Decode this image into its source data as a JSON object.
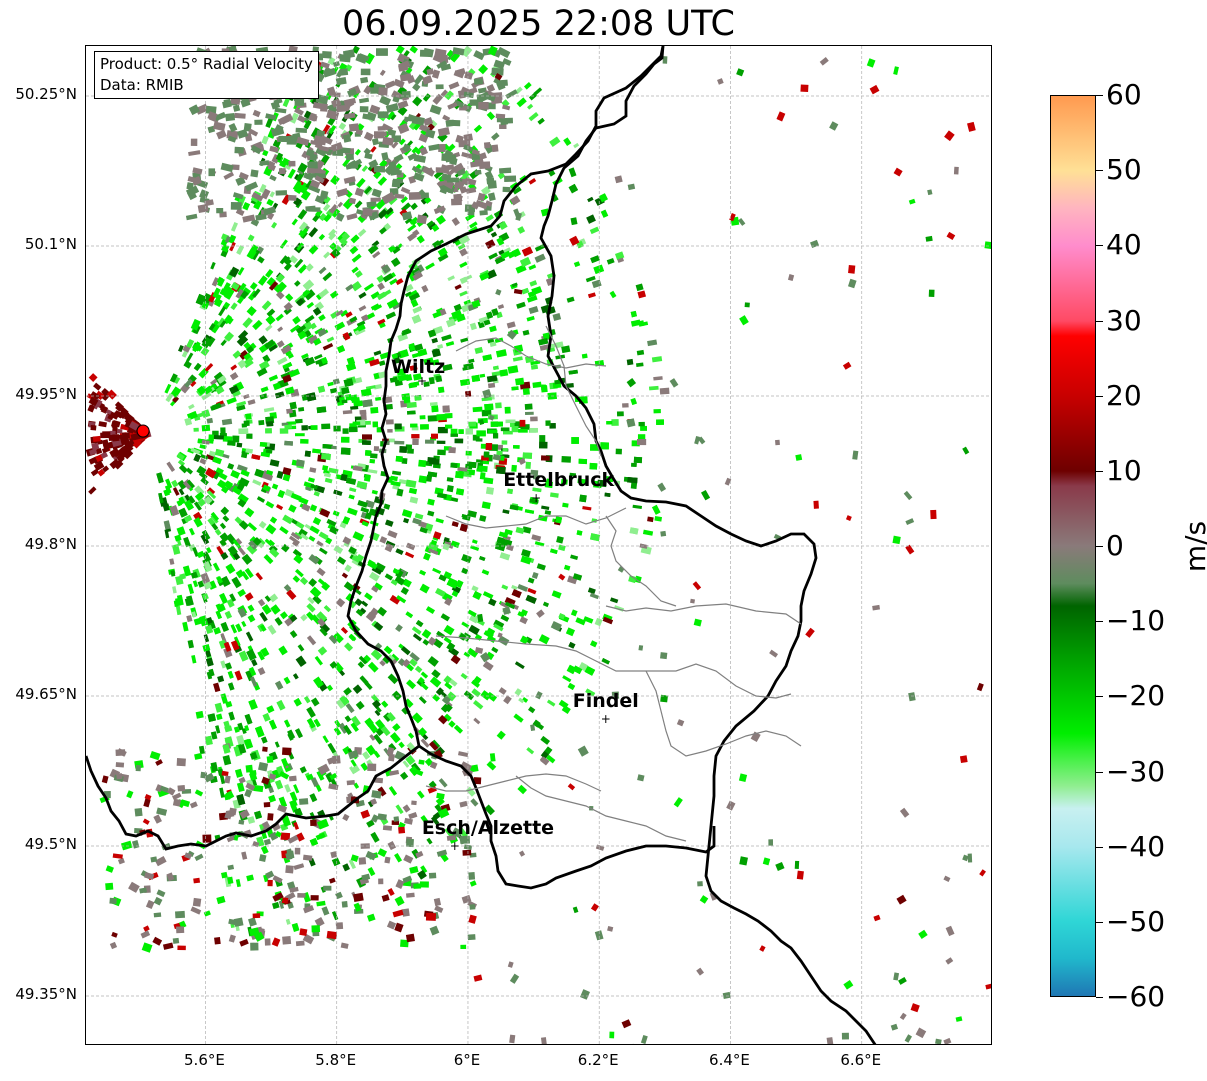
{
  "title": "06.09.2025 22:08 UTC",
  "info": {
    "product": "Product: 0.5° Radial Velocity",
    "data_source": "Data: RMIB"
  },
  "axes": {
    "x_ticks": [
      "5.6°E",
      "5.8°E",
      "6°E",
      "6.2°E",
      "6.4°E",
      "6.6°E"
    ],
    "y_ticks": [
      "50.25°N",
      "50.1°N",
      "49.95°N",
      "49.8°N",
      "49.65°N",
      "49.5°N",
      "49.35°N"
    ],
    "lon_range": [
      5.418,
      6.8
    ],
    "lat_range": [
      49.3,
      50.3
    ]
  },
  "cities": [
    {
      "name": "Wiltz",
      "lon": 5.93,
      "lat": 49.965
    },
    {
      "name": "Ettelbruck",
      "lon": 6.104,
      "lat": 49.848
    },
    {
      "name": "Findel",
      "lon": 6.21,
      "lat": 49.627
    },
    {
      "name": "Esch/Alzette",
      "lon": 5.98,
      "lat": 49.5
    }
  ],
  "radar_site": {
    "lon": 5.505,
    "lat": 49.915
  },
  "colorbar": {
    "label": "m/s",
    "ticks": [
      "60",
      "50",
      "40",
      "30",
      "20",
      "10",
      "0",
      "−10",
      "−20",
      "−30",
      "−40",
      "−50",
      "−60"
    ],
    "range": [
      -60,
      60
    ],
    "stops": [
      {
        "v": -60,
        "c": "#1f77b4"
      },
      {
        "v": -55,
        "c": "#20b8cc"
      },
      {
        "v": -50,
        "c": "#2fd6d6"
      },
      {
        "v": -40,
        "c": "#a8e8ee"
      },
      {
        "v": -35,
        "c": "#c8f0f0"
      },
      {
        "v": -32,
        "c": "#90ee90"
      },
      {
        "v": -28,
        "c": "#3ef03e"
      },
      {
        "v": -25,
        "c": "#00ee00"
      },
      {
        "v": -15,
        "c": "#00a000"
      },
      {
        "v": -8,
        "c": "#006400"
      },
      {
        "v": -5,
        "c": "#5e8c5e"
      },
      {
        "v": 0,
        "c": "#8a7a7a"
      },
      {
        "v": 8,
        "c": "#8a3a4a"
      },
      {
        "v": 10,
        "c": "#6e0000"
      },
      {
        "v": 20,
        "c": "#c80000"
      },
      {
        "v": 28,
        "c": "#ff0000"
      },
      {
        "v": 30,
        "c": "#ff4a64"
      },
      {
        "v": 40,
        "c": "#ff8ccc"
      },
      {
        "v": 45,
        "c": "#ffb4c0"
      },
      {
        "v": 50,
        "c": "#ffe096"
      },
      {
        "v": 60,
        "c": "#ff9a50"
      }
    ]
  },
  "colors": {
    "border": "#000000",
    "canton": "#808080",
    "grid": "#b0b0b0",
    "radar_marker": "#ff0000"
  }
}
